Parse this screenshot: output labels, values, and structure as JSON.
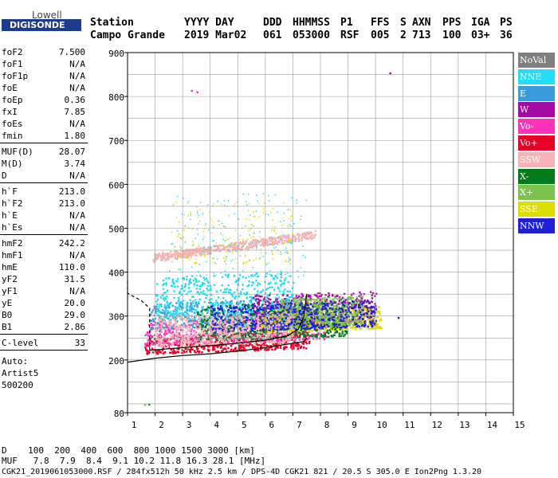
{
  "logo": {
    "top": "Lowell",
    "bottom": "DIGISONDE"
  },
  "header": {
    "cols": [
      {
        "label": "Station",
        "value": "Campo Grande"
      },
      {
        "label": "YYYY DAY",
        "value": "2019 Mar02"
      },
      {
        "label": "DDD",
        "value": "061"
      },
      {
        "label": "HHMMSS",
        "value": "053000"
      },
      {
        "label": "P1",
        "value": "RSF"
      },
      {
        "label": "FFS",
        "value": "005"
      },
      {
        "label": "S",
        "value": "2"
      },
      {
        "label": "AXN",
        "value": "713"
      },
      {
        "label": "PPS",
        "value": "100"
      },
      {
        "label": "IGA",
        "value": "03+"
      },
      {
        "label": "PS",
        "value": "36"
      }
    ]
  },
  "params": [
    {
      "group": [
        {
          "label": "foF2",
          "value": "7.500"
        },
        {
          "label": "foF1",
          "value": "N/A"
        },
        {
          "label": "foF1p",
          "value": "N/A"
        },
        {
          "label": "foE",
          "value": "N/A"
        },
        {
          "label": "foEp",
          "value": "0.36"
        },
        {
          "label": "fxI",
          "value": "7.85"
        },
        {
          "label": "foEs",
          "value": "N/A"
        },
        {
          "label": "fmin",
          "value": "1.80"
        }
      ]
    },
    {
      "group": [
        {
          "label": "MUF(D)",
          "value": "28.07"
        },
        {
          "label": "M(D)",
          "value": "3.74"
        },
        {
          "label": "D",
          "value": "N/A"
        }
      ]
    },
    {
      "group": [
        {
          "label": "h`F",
          "value": "213.0"
        },
        {
          "label": "h`F2",
          "value": "213.0"
        },
        {
          "label": "h`E",
          "value": "N/A"
        },
        {
          "label": "h`Es",
          "value": "N/A"
        }
      ]
    },
    {
      "group": [
        {
          "label": "hmF2",
          "value": "242.2"
        },
        {
          "label": "hmF1",
          "value": "N/A"
        },
        {
          "label": "hmE",
          "value": "110.0"
        },
        {
          "label": "yF2",
          "value": "31.5"
        },
        {
          "label": "yF1",
          "value": "N/A"
        },
        {
          "label": "yE",
          "value": "20.0"
        },
        {
          "label": "B0",
          "value": "29.0"
        },
        {
          "label": "B1",
          "value": "2.86"
        }
      ]
    },
    {
      "group": [
        {
          "label": "C-level",
          "value": "33"
        }
      ]
    }
  ],
  "autoscale": {
    "line1": "Auto:",
    "line2": "Artist5",
    "line3": "500200"
  },
  "legend": [
    {
      "label": "NoVal",
      "color": "#7f7f7f"
    },
    {
      "label": "NNE",
      "color": "#22ddf5"
    },
    {
      "label": "E",
      "color": "#3a9bdc"
    },
    {
      "label": "W",
      "color": "#a30aa3"
    },
    {
      "label": "Vo-",
      "color": "#ff33bb"
    },
    {
      "label": "Vo+",
      "color": "#e60026"
    },
    {
      "label": "SSW",
      "color": "#f7b3b3"
    },
    {
      "label": "X-",
      "color": "#007a1a"
    },
    {
      "label": "X+",
      "color": "#7dc24f"
    },
    {
      "label": "SSE",
      "color": "#dddd00"
    },
    {
      "label": "NNW",
      "color": "#1f1fd6"
    }
  ],
  "footer": {
    "d_line": "D    100  200  400  600  800 1000 1500 3000 [km]",
    "muf_line": "MUF   7.8  7.9  8.4  9.1 10.2 11.8 16.3 28.1 [MHz]",
    "info_line": "CGK21_2019061053000.RSF / 284fx512h 50 kHz 2.5 km / DPS-4D CGK21 821 / 20.5 S 305.0 E Ion2Png 1.3.20"
  },
  "chart_data": {
    "type": "scatter",
    "title": "",
    "xlabel": "",
    "ylabel": "",
    "xlim": [
      1,
      15
    ],
    "ylim": [
      80,
      900
    ],
    "xticks": [
      "1",
      "2",
      "3",
      "4",
      "5",
      "6",
      "7",
      "8",
      "9",
      "10",
      "11",
      "12",
      "13",
      "14",
      "15"
    ],
    "yticks": [
      "80",
      "200",
      "300",
      "400",
      "500",
      "600",
      "700",
      "800",
      "900"
    ],
    "grid": true,
    "clouds": [
      {
        "name": "F-trace",
        "color": "#e60026",
        "x0": 1.6,
        "x1": 7.6,
        "y0": 215,
        "y1": 255
      },
      {
        "name": "F-trace",
        "color": "#ff33bb",
        "x0": 1.6,
        "x1": 8.2,
        "y0": 235,
        "y1": 290
      },
      {
        "name": "F-trace",
        "color": "#3a9bdc",
        "x0": 1.8,
        "x1": 7.5,
        "y0": 270,
        "y1": 330
      },
      {
        "name": "F-trace",
        "color": "#22ddf5",
        "x0": 2.0,
        "x1": 7.0,
        "y0": 290,
        "y1": 390
      },
      {
        "name": "F-trace",
        "color": "#a30aa3",
        "x0": 5.5,
        "x1": 10.0,
        "y0": 270,
        "y1": 340
      },
      {
        "name": "F-trace",
        "color": "#dddd00",
        "x0": 5.8,
        "x1": 10.2,
        "y0": 255,
        "y1": 305
      },
      {
        "name": "F-trace",
        "color": "#007a1a",
        "x0": 3.5,
        "x1": 9.0,
        "y0": 240,
        "y1": 320
      },
      {
        "name": "F-trace",
        "color": "#7dc24f",
        "x0": 6.5,
        "x1": 9.5,
        "y0": 265,
        "y1": 330
      },
      {
        "name": "F-trace",
        "color": "#1f1fd6",
        "x0": 4.0,
        "x1": 10.0,
        "y0": 260,
        "y1": 320
      },
      {
        "name": "F-trace",
        "color": "#f7b3b3",
        "x0": 2.0,
        "x1": 7.0,
        "y0": 230,
        "y1": 300
      },
      {
        "name": "2F",
        "color": "#f7b3b3",
        "x0": 1.9,
        "x1": 7.8,
        "y0": 425,
        "y1": 500
      },
      {
        "name": "spread",
        "color": "#22ddf5",
        "x0": 2.5,
        "x1": 7.5,
        "y0": 390,
        "y1": 580
      },
      {
        "name": "spread",
        "color": "#dddd00",
        "x0": 2.5,
        "x1": 7.0,
        "y0": 420,
        "y1": 560
      }
    ],
    "isolated_points": [
      {
        "x": 10.5,
        "y": 855,
        "color": "#a30aa3"
      },
      {
        "x": 3.3,
        "y": 815,
        "color": "#ff33bb"
      },
      {
        "x": 3.5,
        "y": 812,
        "color": "#ff33bb"
      },
      {
        "x": 1.6,
        "y": 100,
        "color": "#7dc24f"
      },
      {
        "x": 1.75,
        "y": 101,
        "color": "#007a1a"
      },
      {
        "x": 10.8,
        "y": 298,
        "color": "#1f1fd6"
      }
    ],
    "profile_curve": [
      {
        "x": 0,
        "y": 380
      },
      {
        "x": 1.0,
        "y": 352
      },
      {
        "x": 1.5,
        "y": 335
      },
      {
        "x": 1.8,
        "y": 318
      },
      {
        "x": 1.8,
        "y": 215
      }
    ],
    "profile_lower": [
      {
        "x": 1.0,
        "y": 195
      },
      {
        "x": 2.0,
        "y": 204
      },
      {
        "x": 3.0,
        "y": 210
      },
      {
        "x": 4.0,
        "y": 214
      },
      {
        "x": 5.0,
        "y": 220
      },
      {
        "x": 6.0,
        "y": 228
      },
      {
        "x": 6.8,
        "y": 236
      },
      {
        "x": 7.4,
        "y": 242
      },
      {
        "x": 7.5,
        "y": 250
      }
    ],
    "trace_curve": [
      {
        "x": 1.8,
        "y": 222
      },
      {
        "x": 3.0,
        "y": 228
      },
      {
        "x": 4.0,
        "y": 233
      },
      {
        "x": 5.0,
        "y": 238
      },
      {
        "x": 6.0,
        "y": 245
      },
      {
        "x": 6.8,
        "y": 255
      },
      {
        "x": 7.2,
        "y": 270
      },
      {
        "x": 7.4,
        "y": 300
      },
      {
        "x": 7.5,
        "y": 350
      }
    ]
  }
}
